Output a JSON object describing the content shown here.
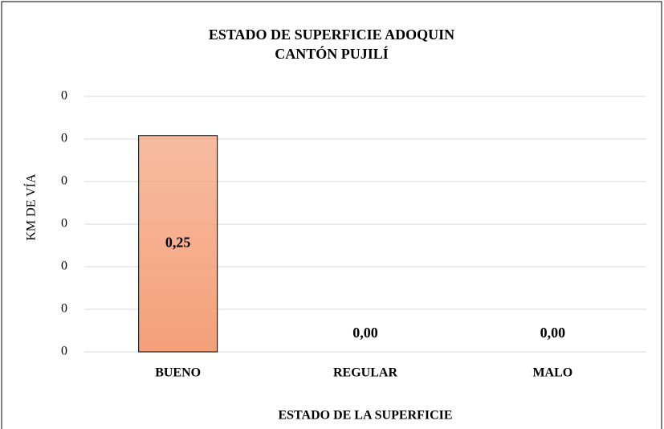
{
  "chart_data": {
    "type": "bar",
    "title": [
      "ESTADO DE SUPERFICIE ADOQUIN",
      "CANTÓN PUJILÍ"
    ],
    "x_label": "ESTADO DE LA SUPERFICIE",
    "y_label": "KM DE VÍA",
    "categories": [
      "BUENO",
      "REGULAR",
      "MALO"
    ],
    "values": [
      0.254,
      0,
      0
    ],
    "value_labels": [
      "0,25",
      "0,00",
      "0,00"
    ],
    "color": "#f4a07a",
    "ylim": [
      0,
      0.3
    ],
    "yticks": [
      0,
      {
        "value": 0.05,
        "label": "0"
      },
      {
        "value": 0.1,
        "label": "0"
      },
      {
        "value": 0.15,
        "label": "0"
      },
      {
        "value": 0.2,
        "label": "0"
      },
      {
        "value": 0.25,
        "label": "0"
      },
      {
        "value": 0.3,
        "label": "0"
      }
    ],
    "grid": true
  }
}
